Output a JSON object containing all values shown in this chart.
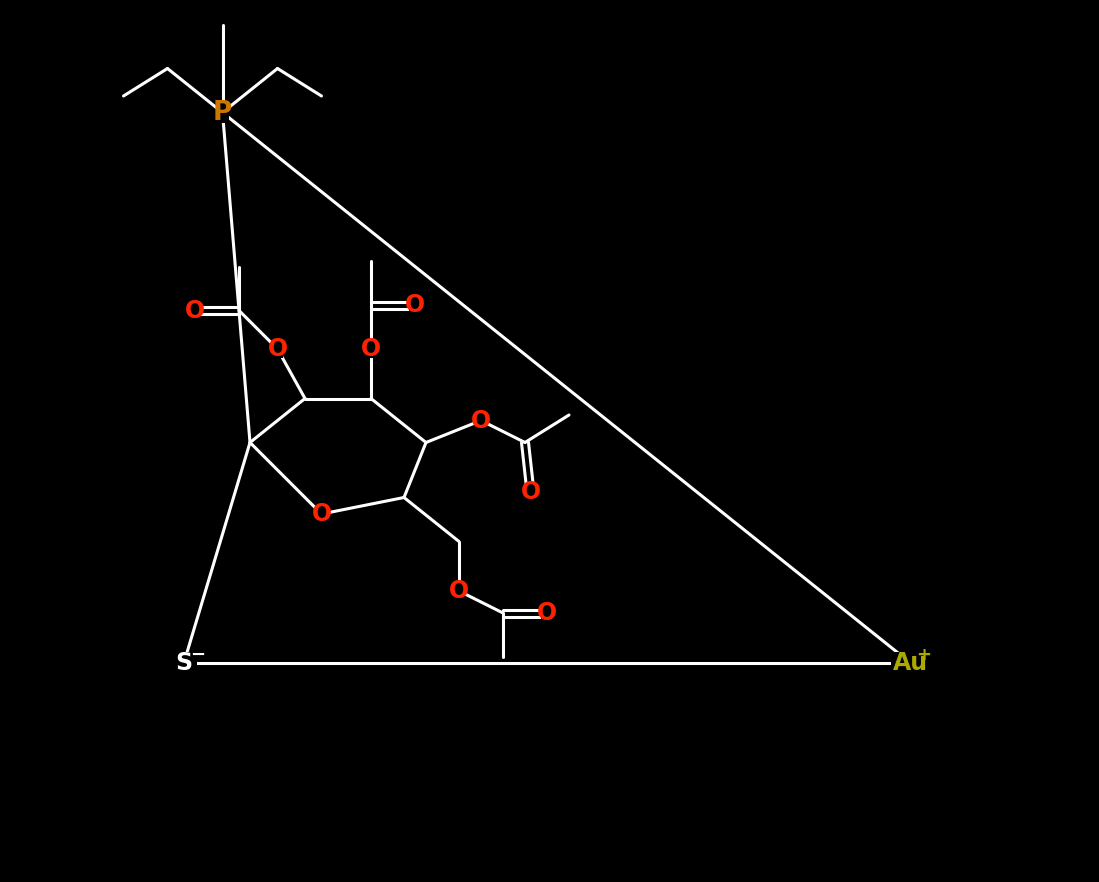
{
  "bg_color": "#000000",
  "bond_color": "#ffffff",
  "bond_width": 2.2,
  "P_color": "#cc7700",
  "O_color": "#ff2200",
  "S_color": "#ffffff",
  "Au_color": "#aaaa00",
  "figsize": [
    10.99,
    8.82
  ],
  "dpi": 100,
  "xlim": [
    0,
    10.99
  ],
  "ylim": [
    0,
    8.82
  ],
  "label_fontsize": 17,
  "super_fontsize": 13
}
